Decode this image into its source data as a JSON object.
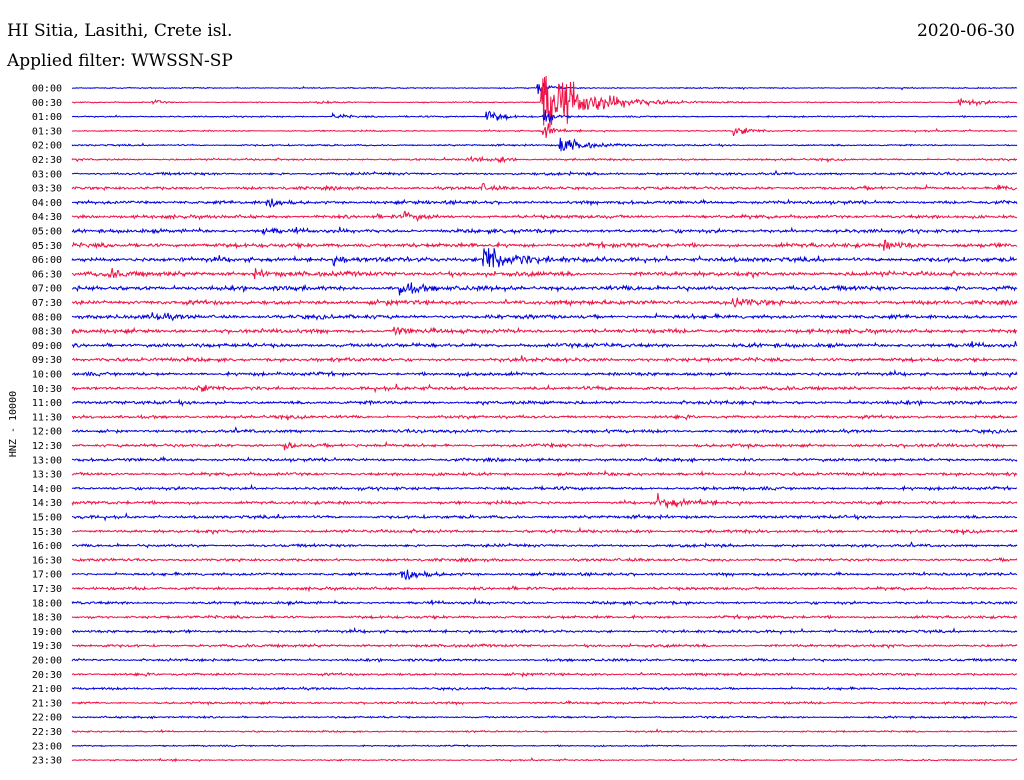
{
  "header": {
    "station": "HI Sitia, Lasithi, Crete isl.",
    "filter": "Applied filter: WWSSN-SP",
    "date": "2020-06-30"
  },
  "chart_data": {
    "type": "line",
    "title": "HI Sitia, Lasithi, Crete isl.",
    "subtitle": "Applied filter: WWSSN-SP",
    "ylabel": "HNZ - 10000",
    "grid": false,
    "colors": [
      "#0000dd",
      "#ee1144"
    ],
    "row_labels": [
      "00:00",
      "00:30",
      "01:00",
      "01:30",
      "02:00",
      "02:30",
      "03:00",
      "03:30",
      "04:00",
      "04:30",
      "05:00",
      "05:30",
      "06:00",
      "06:30",
      "07:00",
      "07:30",
      "08:00",
      "08:30",
      "09:00",
      "09:30",
      "10:00",
      "10:30",
      "11:00",
      "11:30",
      "12:00",
      "12:30",
      "13:00",
      "13:30",
      "14:00",
      "14:30",
      "15:00",
      "15:30",
      "16:00",
      "16:30",
      "17:00",
      "17:30",
      "18:00",
      "18:30",
      "19:00",
      "19:30",
      "20:00",
      "20:30",
      "21:00",
      "21:30",
      "22:00",
      "22:30",
      "23:00",
      "23:30"
    ],
    "noise_levels": [
      0.4,
      0.4,
      0.5,
      0.5,
      0.6,
      0.7,
      0.9,
      1.1,
      1.2,
      1.2,
      1.3,
      1.5,
      1.6,
      1.6,
      1.6,
      1.5,
      1.4,
      1.4,
      1.4,
      1.3,
      1.2,
      1.2,
      1.2,
      1.1,
      1.1,
      1.1,
      1.1,
      1.1,
      1.1,
      1.1,
      1.1,
      1.1,
      1.0,
      1.0,
      1.0,
      1.0,
      1.0,
      1.0,
      1.0,
      1.0,
      0.9,
      0.9,
      0.8,
      0.8,
      0.7,
      0.6,
      0.5,
      0.5
    ],
    "events": [
      {
        "row": 0,
        "minute": 14.8,
        "amp": 8,
        "dur": 0.3
      },
      {
        "row": 1,
        "minute": 14.9,
        "amp": 36,
        "dur": 1.2
      },
      {
        "row": 1,
        "minute": 28.2,
        "amp": 5,
        "dur": 0.6
      },
      {
        "row": 1,
        "minute": 2.6,
        "amp": 2.5,
        "dur": 0.2
      },
      {
        "row": 1,
        "minute": 7.8,
        "amp": 2,
        "dur": 0.3
      },
      {
        "row": 2,
        "minute": 8.3,
        "amp": 3,
        "dur": 0.4
      },
      {
        "row": 2,
        "minute": 13.2,
        "amp": 6,
        "dur": 0.5
      },
      {
        "row": 2,
        "minute": 15.0,
        "amp": 14,
        "dur": 0.2
      },
      {
        "row": 3,
        "minute": 15.0,
        "amp": 10,
        "dur": 0.2
      },
      {
        "row": 3,
        "minute": 21.0,
        "amp": 4,
        "dur": 0.5
      },
      {
        "row": 4,
        "minute": 15.5,
        "amp": 8,
        "dur": 0.7
      },
      {
        "row": 5,
        "minute": 12.6,
        "amp": 3,
        "dur": 0.4
      },
      {
        "row": 5,
        "minute": 13.5,
        "amp": 2.5,
        "dur": 0.3
      },
      {
        "row": 7,
        "minute": 13.0,
        "amp": 4,
        "dur": 0.2
      },
      {
        "row": 7,
        "minute": 29.4,
        "amp": 3,
        "dur": 0.4
      },
      {
        "row": 8,
        "minute": 6.2,
        "amp": 6,
        "dur": 0.3
      },
      {
        "row": 9,
        "minute": 10.6,
        "amp": 3.5,
        "dur": 0.4
      },
      {
        "row": 10,
        "minute": 6.1,
        "amp": 4,
        "dur": 0.3
      },
      {
        "row": 11,
        "minute": 25.8,
        "amp": 3.5,
        "dur": 0.6
      },
      {
        "row": 12,
        "minute": 13.1,
        "amp": 16,
        "dur": 0.7
      },
      {
        "row": 12,
        "minute": 8.3,
        "amp": 4,
        "dur": 0.3
      },
      {
        "row": 13,
        "minute": 1.2,
        "amp": 3,
        "dur": 0.4
      },
      {
        "row": 13,
        "minute": 5.8,
        "amp": 3,
        "dur": 0.4
      },
      {
        "row": 14,
        "minute": 10.4,
        "amp": 8,
        "dur": 0.4
      },
      {
        "row": 15,
        "minute": 21.0,
        "amp": 3.5,
        "dur": 0.6
      },
      {
        "row": 16,
        "minute": 2.6,
        "amp": 4,
        "dur": 0.3
      },
      {
        "row": 17,
        "minute": 10.2,
        "amp": 4,
        "dur": 0.4
      },
      {
        "row": 21,
        "minute": 4.0,
        "amp": 2.5,
        "dur": 0.4
      },
      {
        "row": 25,
        "minute": 6.8,
        "amp": 4,
        "dur": 0.3
      },
      {
        "row": 29,
        "minute": 18.6,
        "amp": 7,
        "dur": 0.5
      },
      {
        "row": 34,
        "minute": 10.4,
        "amp": 8,
        "dur": 0.5
      },
      {
        "row": 47,
        "minute": 30.0,
        "amp": 3,
        "dur": 0.1
      }
    ]
  }
}
